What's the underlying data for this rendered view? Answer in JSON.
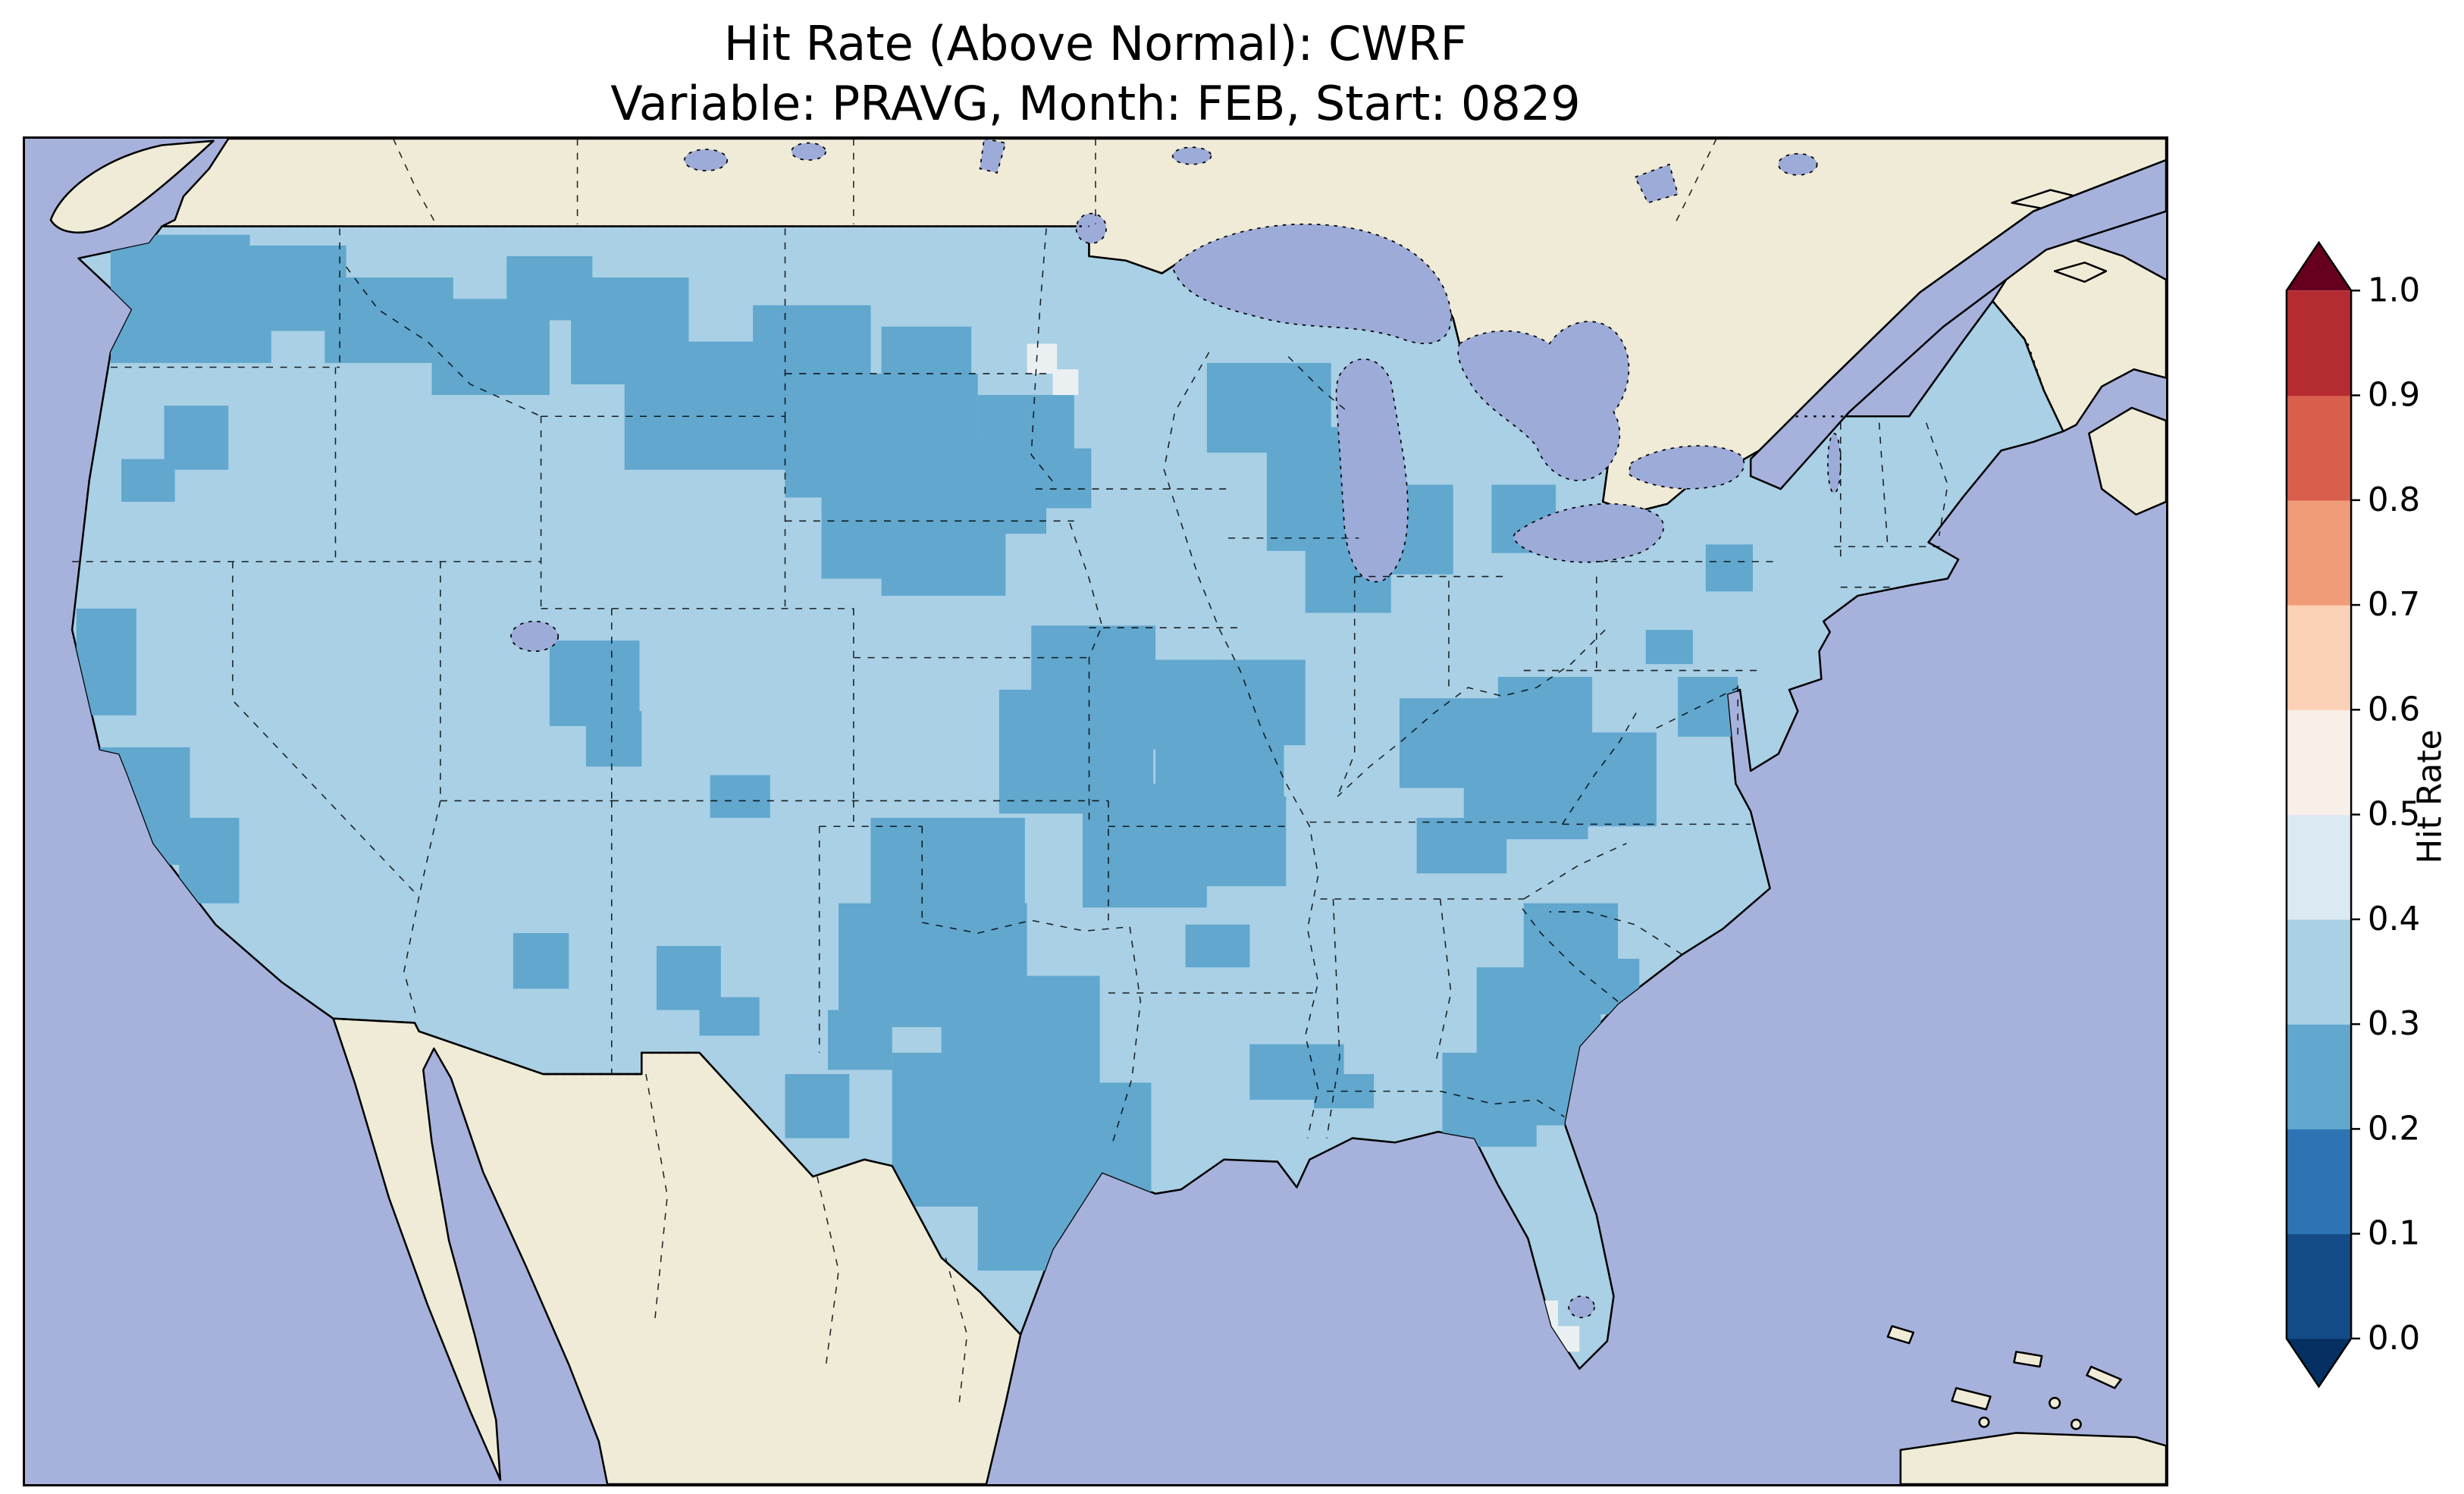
{
  "title": {
    "line1": "Hit Rate (Above Normal): CWRF",
    "line2": "Variable: PRAVG, Month: FEB, Start: 0829"
  },
  "colorbar": {
    "label": "Hit Rate",
    "ticks": [
      "0.0",
      "0.1",
      "0.2",
      "0.3",
      "0.4",
      "0.5",
      "0.6",
      "0.7",
      "0.8",
      "0.9",
      "1.0"
    ],
    "extend": "both",
    "segment_colors": [
      "#053061",
      "#134b86",
      "#2e74b5",
      "#61a7ce",
      "#a9d0e5",
      "#dbe9f2",
      "#f9efe9",
      "#fbd2b8",
      "#f09c78",
      "#d95f4c",
      "#b52b32",
      "#67001f"
    ]
  },
  "colors": {
    "ocean": "#a6b2dc",
    "land": "#f0ebd7",
    "lake": "#9dabd8",
    "cell_light": "#a9d0e5",
    "cell_dark": "#61a7ce",
    "cell_pale": "#eaf0f2"
  },
  "chart_data": {
    "type": "heatmap",
    "title": "Hit Rate (Above Normal): CWRF",
    "subtitle": "Variable: PRAVG, Month: FEB, Start: 0829",
    "metric": "Hit Rate (Above Normal)",
    "model": "CWRF",
    "variable": "PRAVG",
    "month": "FEB",
    "start": "0829",
    "colorbar_label": "Hit Rate",
    "colorbar_ticks": [
      0.0,
      0.1,
      0.2,
      0.3,
      0.4,
      0.5,
      0.6,
      0.7,
      0.8,
      0.9,
      1.0
    ],
    "value_range": [
      0.0,
      1.0
    ],
    "colormap": "RdBu_r (discrete, 0.1 bins, extended both ends)",
    "geography": "Contiguous United States (gridded cells); surrounding Canada/Mexico shown as no-data land; oceans and Great Lakes in blue-purple",
    "legend_position": "right vertical colorbar",
    "regions": [
      {
        "area": "Most of the contiguous US",
        "hit_rate_bin": "0.3-0.4"
      },
      {
        "area": "Washington / northern Idaho / western Montana",
        "hit_rate_bin": "0.2-0.3"
      },
      {
        "area": "Central-eastern Montana through the Dakotas into Nebraska",
        "hit_rate_bin": "0.2-0.3"
      },
      {
        "area": "Wisconsin and areas around Lake Michigan",
        "hit_rate_bin": "0.2-0.3"
      },
      {
        "area": "Kansas / Missouri / Iowa junction",
        "hit_rate_bin": "0.2-0.3"
      },
      {
        "area": "Texas panhandle / Oklahoma / central Texas",
        "hit_rate_bin": "0.2-0.3"
      },
      {
        "area": "Central Utah patch",
        "hit_rate_bin": "0.2-0.3"
      },
      {
        "area": "Central California coast patch",
        "hit_rate_bin": "0.2-0.3"
      },
      {
        "area": "Ohio Valley (southern Indiana / Ohio / Kentucky / West Virginia)",
        "hit_rate_bin": "0.2-0.3"
      },
      {
        "area": "Central Georgia / South Carolina",
        "hit_rate_bin": "0.2-0.3"
      },
      {
        "area": "Small Louisiana / Mississippi gulf patches",
        "hit_rate_bin": "0.2-0.3"
      },
      {
        "area": "Few cells in northern Minnesota",
        "hit_rate_bin": "0.4-0.6"
      },
      {
        "area": "Few cells in south Florida",
        "hit_rate_bin": "0.4-0.5"
      }
    ]
  }
}
